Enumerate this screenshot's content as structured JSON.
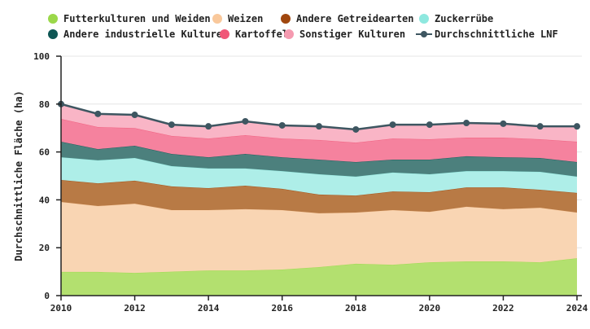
{
  "chart_data": {
    "type": "area",
    "stacked": true,
    "title": "",
    "xlabel": "",
    "ylabel": "Durchschnittliche Fläche (ha)",
    "xlim": [
      2010,
      2024
    ],
    "ylim": [
      0,
      100
    ],
    "yticks": [
      0,
      20,
      40,
      60,
      80,
      100
    ],
    "xticks": [
      2010,
      2012,
      2014,
      2016,
      2018,
      2020,
      2022,
      2024
    ],
    "grid": "horizontal",
    "legend_position": "top",
    "x": [
      2010,
      2011,
      2012,
      2013,
      2014,
      2015,
      2016,
      2017,
      2018,
      2019,
      2020,
      2021,
      2022,
      2023,
      2024
    ],
    "series": [
      {
        "name": "Futterkulturen und Weiden",
        "color": "#9bd84a",
        "fill": "#b3e06f",
        "values": [
          9.9,
          9.9,
          9.5,
          10.0,
          10.5,
          10.5,
          10.9,
          11.9,
          13.3,
          12.9,
          13.9,
          14.3,
          14.3,
          13.9,
          15.6
        ]
      },
      {
        "name": "Weizen",
        "color": "#f9c89b",
        "fill": "#f9d5b3",
        "values": [
          29.2,
          27.5,
          28.9,
          25.7,
          25.2,
          25.6,
          24.8,
          22.5,
          21.4,
          22.8,
          21.1,
          22.8,
          21.8,
          22.8,
          19.1
        ]
      },
      {
        "name": "Andere Getreidearten",
        "color": "#a0470e",
        "fill": "#b87a45",
        "values": [
          9.2,
          9.5,
          9.6,
          9.9,
          9.2,
          9.8,
          8.9,
          7.8,
          7.1,
          7.8,
          8.2,
          8.1,
          9.1,
          7.5,
          8.2
        ]
      },
      {
        "name": "Zuckerrübe",
        "color": "#8ee8df",
        "fill": "#aeeee8",
        "values": [
          9.5,
          9.6,
          9.5,
          8.5,
          8.2,
          7.2,
          7.4,
          8.5,
          7.9,
          7.9,
          7.5,
          6.8,
          6.8,
          7.5,
          6.8
        ]
      },
      {
        "name": "Andere industrielle Kulturen",
        "color": "#0e5654",
        "fill": "#4c807d",
        "values": [
          6.5,
          4.7,
          5.1,
          5.1,
          4.7,
          6.1,
          5.8,
          6.1,
          6.1,
          5.4,
          6.1,
          6.2,
          5.8,
          5.8,
          6.1
        ]
      },
      {
        "name": "Kartoffel",
        "color": "#f05778",
        "fill": "#f5829e",
        "values": [
          9.5,
          9.2,
          7.4,
          7.5,
          7.8,
          7.8,
          7.8,
          8.2,
          8.1,
          8.8,
          8.5,
          7.8,
          8.2,
          7.8,
          8.5
        ]
      },
      {
        "name": "Sonstiger Kulturen",
        "color": "#f59ab0",
        "fill": "#f9b5c6",
        "values": [
          6.2,
          5.5,
          5.5,
          4.7,
          5.1,
          5.8,
          5.5,
          5.7,
          5.5,
          5.8,
          6.1,
          6.1,
          5.8,
          5.4,
          6.4
        ]
      }
    ],
    "line_series": {
      "name": "Durchschnittliche LNF",
      "color": "#3e5661",
      "values": [
        80.0,
        75.9,
        75.5,
        71.4,
        70.7,
        72.8,
        71.1,
        70.7,
        69.4,
        71.4,
        71.4,
        72.1,
        71.8,
        70.7,
        70.7
      ]
    }
  }
}
